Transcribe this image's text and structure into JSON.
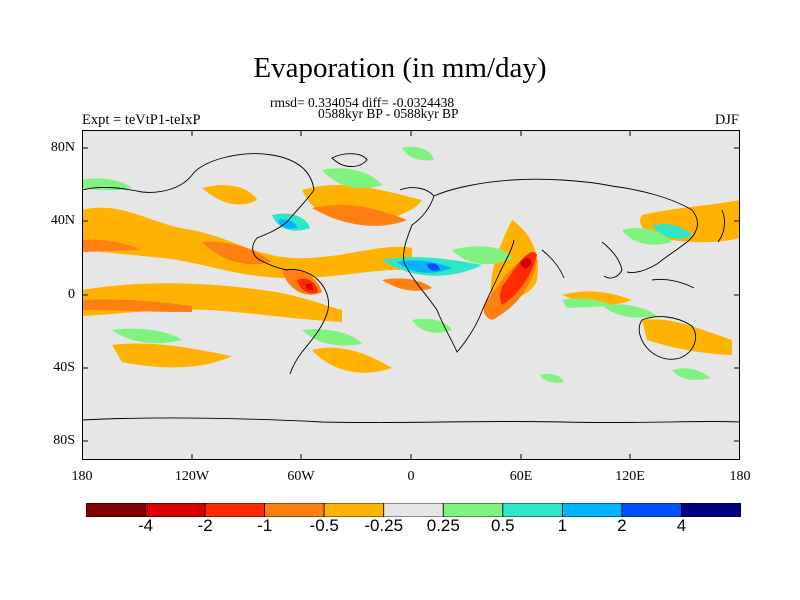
{
  "title": "Evaporation (in mm/day)",
  "stats_line1": "rmsd= 0.334054 diff= -0.0324438",
  "stats_line2": "0588kyr BP - 0588kyr BP",
  "experiment": "Expt = teVtP1-teIxP",
  "season": "DJF",
  "axes": {
    "lat_labels": [
      "80N",
      "40N",
      "0",
      "40S",
      "80S"
    ],
    "lon_labels": [
      "180",
      "120W",
      "60W",
      "0",
      "60E",
      "120E",
      "180"
    ]
  },
  "colorbar": {
    "labels": [
      "-4",
      "-2",
      "-1",
      "-0.5",
      "-0.25",
      "0.25",
      "0.5",
      "1",
      "2",
      "4"
    ],
    "colors": [
      "#7f0000",
      "#d40000",
      "#ff2a00",
      "#ff7f11",
      "#ffb300",
      "#e6e6e6",
      "#7ff27f",
      "#2ee6c8",
      "#00b4ff",
      "#0050ff",
      "#000080"
    ]
  },
  "colors": {
    "background_field": "#e6e6e6",
    "coastline": "#000000"
  }
}
